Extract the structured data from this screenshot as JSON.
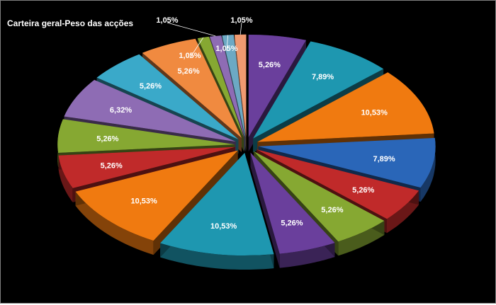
{
  "chart_data": {
    "type": "pie",
    "title": "Carteira geral-Peso das acções",
    "values": [
      5.26,
      7.89,
      10.53,
      7.89,
      5.26,
      5.26,
      5.26,
      10.53,
      10.53,
      5.26,
      5.26,
      6.32,
      5.26,
      5.26,
      1.05,
      1.05,
      1.05,
      1.05
    ],
    "labels": [
      "5,26%",
      "7,89%",
      "10,53%",
      "7,89%",
      "5,26%",
      "5,26%",
      "5,26%",
      "10,53%",
      "10,53%",
      "5,26%",
      "5,26%",
      "6,32%",
      "5,26%",
      "5,26%",
      "1,05%",
      "1,05%",
      "1,05%",
      "1,05%"
    ],
    "colors": [
      "#6a3f9c",
      "#1e97b0",
      "#f07a10",
      "#2a66b8",
      "#c02a2a",
      "#86a832",
      "#6a3f9c",
      "#1e97b0",
      "#f07a10",
      "#c02a2a",
      "#86a832",
      "#8e6cb4",
      "#3aa9c9",
      "#f08a40",
      "#86a832",
      "#8e6cb4",
      "#6ca9c4",
      "#f09a70"
    ],
    "style": "3d-exploded",
    "legend": "none"
  }
}
